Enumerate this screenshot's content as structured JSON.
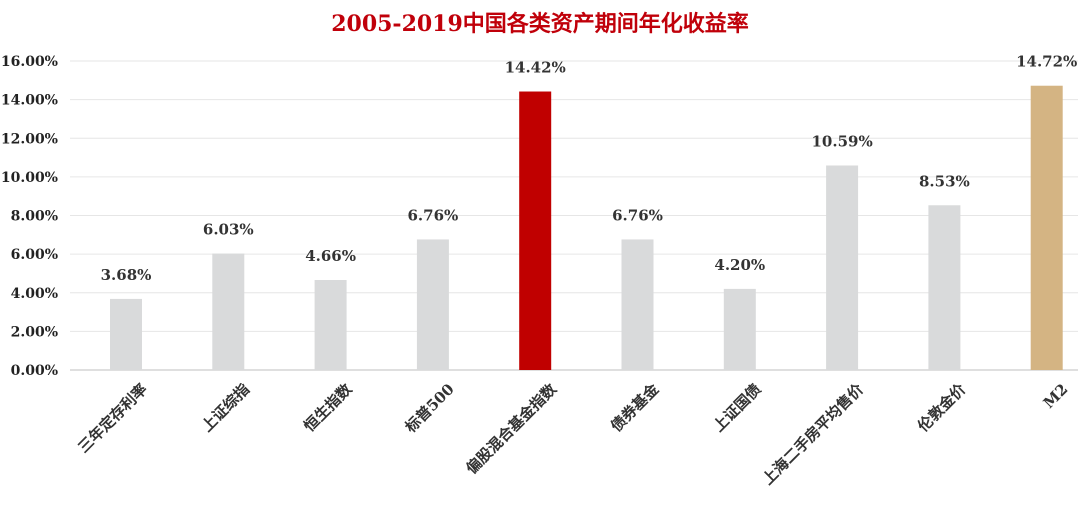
{
  "chart_data": {
    "type": "bar",
    "title": "2005-2019中国各类资产期间年化收益率",
    "categories": [
      "三年定存利率",
      "上证综指",
      "恒生指数",
      "标普500",
      "偏股混合基金指数",
      "债券基金",
      "上证国债",
      "上海二手房平均售价",
      "伦敦金价",
      "M2"
    ],
    "values": [
      3.68,
      6.03,
      4.66,
      6.76,
      14.42,
      6.76,
      4.2,
      10.59,
      8.53,
      14.72
    ],
    "data_labels": [
      "3.68%",
      "6.03%",
      "4.66%",
      "6.76%",
      "14.42%",
      "6.76%",
      "4.20%",
      "10.59%",
      "8.53%",
      "14.72%"
    ],
    "ylim": [
      0,
      16
    ],
    "yticks": [
      "0.00%",
      "2.00%",
      "4.00%",
      "6.00%",
      "8.00%",
      "10.00%",
      "12.00%",
      "14.00%",
      "16.00%"
    ],
    "grid": true,
    "colors": {
      "title": "#c0000a",
      "default_bar": "#d9dadb",
      "highlight_bar": "#c00000",
      "m2_bar": "#d4b483",
      "gridline": "#e6e6e6"
    },
    "bar_colors": [
      "#d9dadb",
      "#d9dadb",
      "#d9dadb",
      "#d9dadb",
      "#c00000",
      "#d9dadb",
      "#d9dadb",
      "#d9dadb",
      "#d9dadb",
      "#d4b483"
    ]
  }
}
